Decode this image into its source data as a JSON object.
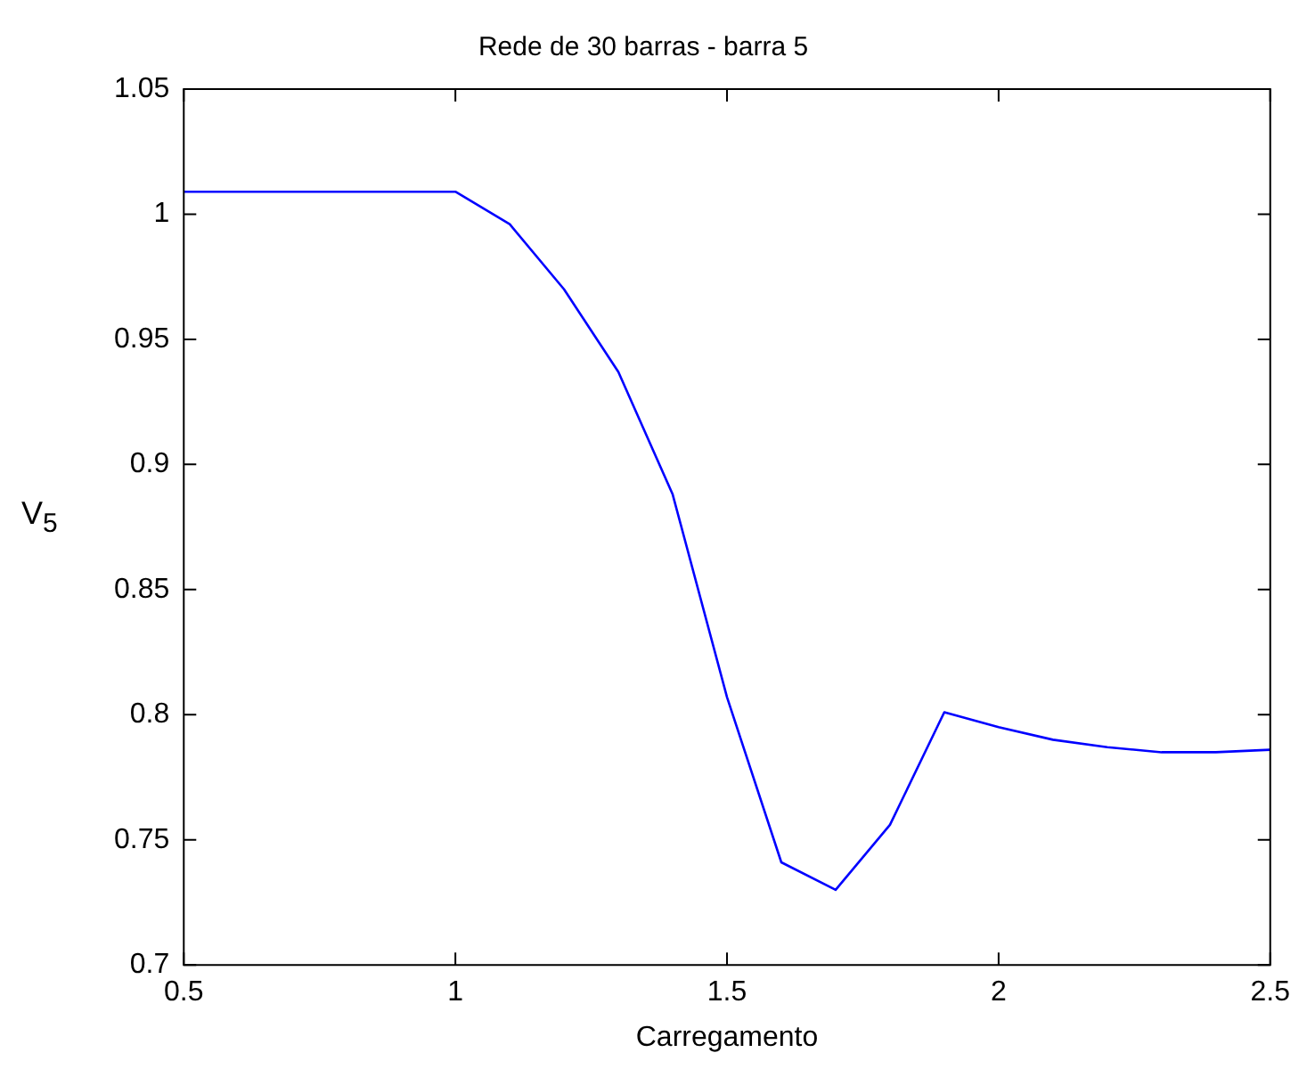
{
  "chart_data": {
    "type": "line",
    "title": "Rede de 30 barras - barra 5",
    "xlabel": "Carregamento",
    "ylabel": "V$_{5}$",
    "series": [
      {
        "color": "#0000ff",
        "x": [
          0.5,
          1.0,
          1.1,
          1.2,
          1.3,
          1.4,
          1.5,
          1.6,
          1.7,
          1.8,
          1.9,
          2.0,
          2.1,
          2.2,
          2.3,
          2.4,
          2.5
        ],
        "values": [
          1.009,
          1.009,
          0.996,
          0.97,
          0.937,
          0.888,
          0.807,
          0.741,
          0.73,
          0.756,
          0.801,
          0.795,
          0.79,
          0.787,
          0.785,
          0.785,
          0.786
        ]
      }
    ],
    "xlim": [
      0.5,
      2.5
    ],
    "xticks": [
      0.5,
      1,
      1.5,
      2,
      2.5
    ],
    "ylim": [
      0.7,
      1.05
    ],
    "yticks": [
      0.7,
      0.75,
      0.8,
      0.85,
      0.9,
      0.95,
      1,
      1.05
    ],
    "grid": false,
    "legend": false,
    "marker": "none",
    "line_style": "solid"
  }
}
